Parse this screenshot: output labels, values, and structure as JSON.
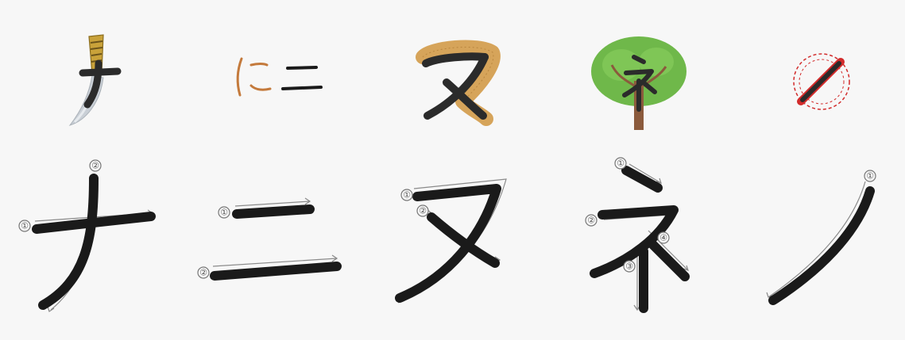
{
  "characters": [
    {
      "katakana": "ナ",
      "mnemonic_icon": "knife-icon",
      "stroke_numbers": [
        "①",
        "②"
      ]
    },
    {
      "katakana": "ニ",
      "mnemonic_icon": "hiragana-ni-icon",
      "mnemonic_text_hiragana": "に",
      "mnemonic_text_katakana": "ニ",
      "stroke_numbers": [
        "①",
        "②"
      ]
    },
    {
      "katakana": "ヌ",
      "mnemonic_icon": "noodle-icon",
      "stroke_numbers": [
        "①",
        "②"
      ]
    },
    {
      "katakana": "ネ",
      "mnemonic_icon": "tree-icon",
      "stroke_numbers": [
        "①",
        "②",
        "③",
        "④"
      ]
    },
    {
      "katakana": "ノ",
      "mnemonic_icon": "no-sign-icon",
      "stroke_numbers": [
        "①"
      ]
    }
  ],
  "colors": {
    "background": "#f7f7f7",
    "stroke": "#1a1a1a",
    "guide": "#8a8a8a",
    "knife_handle": "#c9a23a",
    "knife_blade": "#c9cfd6",
    "hiragana": "#c47a3c",
    "noodle": "#d6a45a",
    "tree_leaves": "#6fb84a",
    "tree_trunk": "#8b5a3c",
    "no_sign": "#d22b2b"
  }
}
